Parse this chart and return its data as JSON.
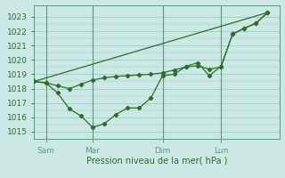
{
  "title": "",
  "xlabel": "Pression niveau de la mer( hPa )",
  "ylim": [
    1014.5,
    1023.8
  ],
  "xlim": [
    0,
    21
  ],
  "yticks": [
    1015,
    1016,
    1017,
    1018,
    1019,
    1020,
    1021,
    1022,
    1023
  ],
  "xtick_positions": [
    1,
    5,
    11,
    16
  ],
  "xtick_labels": [
    "Sam",
    "Mar",
    "Dim",
    "Lun"
  ],
  "vline_positions": [
    1,
    5,
    11,
    16
  ],
  "bg_color": "#cce8e4",
  "grid_color": "#9dc8c4",
  "line_color": "#2d6e2d",
  "vline_color": "#5a9a7a",
  "line1_x": [
    0,
    1,
    2,
    3,
    4,
    5,
    6,
    7,
    8,
    9,
    10,
    11,
    12,
    13,
    14,
    15,
    16,
    17,
    18,
    19,
    20
  ],
  "line1_y": [
    1018.5,
    1018.4,
    1018.2,
    1018.0,
    1018.3,
    1018.6,
    1018.75,
    1018.85,
    1018.9,
    1018.95,
    1019.0,
    1019.1,
    1019.3,
    1019.5,
    1019.6,
    1019.35,
    1019.5,
    1021.8,
    1022.2,
    1022.55,
    1023.3
  ],
  "line2_x": [
    0,
    1,
    2,
    3,
    4,
    5,
    6,
    7,
    8,
    9,
    10,
    11,
    12,
    13,
    14,
    15,
    16,
    17,
    18,
    19,
    20
  ],
  "line2_y": [
    1018.5,
    1018.4,
    1017.7,
    1016.6,
    1016.1,
    1015.3,
    1015.55,
    1016.2,
    1016.65,
    1016.65,
    1017.35,
    1018.9,
    1019.0,
    1019.55,
    1019.8,
    1018.9,
    1019.55,
    1021.8,
    1022.2,
    1022.55,
    1023.3
  ],
  "trend_x": [
    0,
    20
  ],
  "trend_y": [
    1018.5,
    1023.3
  ]
}
